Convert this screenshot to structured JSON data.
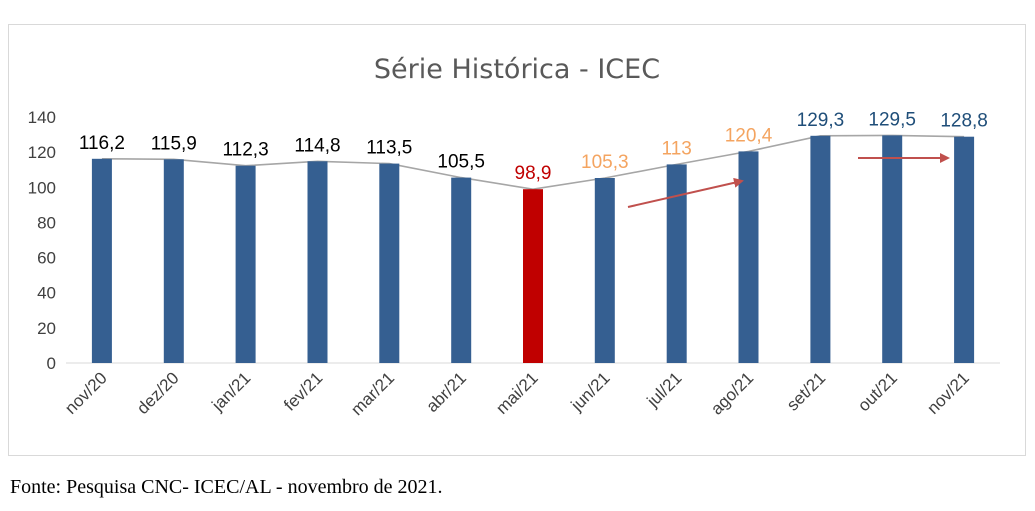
{
  "chart_data": {
    "type": "bar",
    "title": "Série Histórica - ICEC",
    "categories": [
      "nov/20",
      "dez/20",
      "jan/21",
      "fev/21",
      "mar/21",
      "abr/21",
      "mai/21",
      "jun/21",
      "jul/21",
      "ago/21",
      "set/21",
      "out/21",
      "nov/21"
    ],
    "values": [
      116.2,
      115.9,
      112.3,
      114.8,
      113.5,
      105.5,
      98.9,
      105.3,
      113,
      120.4,
      129.3,
      129.5,
      128.8
    ],
    "value_labels": [
      "116,2",
      "115,9",
      "112,3",
      "114,8",
      "113,5",
      "105,5",
      "98,9",
      "105,3",
      "113",
      "120,4",
      "129,3",
      "129,5",
      "128,8"
    ],
    "label_colors": [
      "#000000",
      "#000000",
      "#000000",
      "#000000",
      "#000000",
      "#000000",
      "#c00000",
      "#f4a460",
      "#f4a460",
      "#f4a460",
      "#1f4e79",
      "#1f4e79",
      "#1f4e79"
    ],
    "bar_colors": [
      "#355f91",
      "#355f91",
      "#355f91",
      "#355f91",
      "#355f91",
      "#355f91",
      "#c00000",
      "#355f91",
      "#355f91",
      "#355f91",
      "#355f91",
      "#355f91",
      "#355f91"
    ],
    "trend_line_color": "#a6a6a6",
    "arrow_color": "#c0504d",
    "ylim": [
      0,
      140
    ],
    "yticks": [
      0,
      20,
      40,
      60,
      80,
      100,
      120,
      140
    ],
    "grid": false,
    "legend": "none",
    "xlabel": "",
    "ylabel": ""
  },
  "source_note": "Fonte: Pesquisa CNC- ICEC/AL - novembro de 2021."
}
